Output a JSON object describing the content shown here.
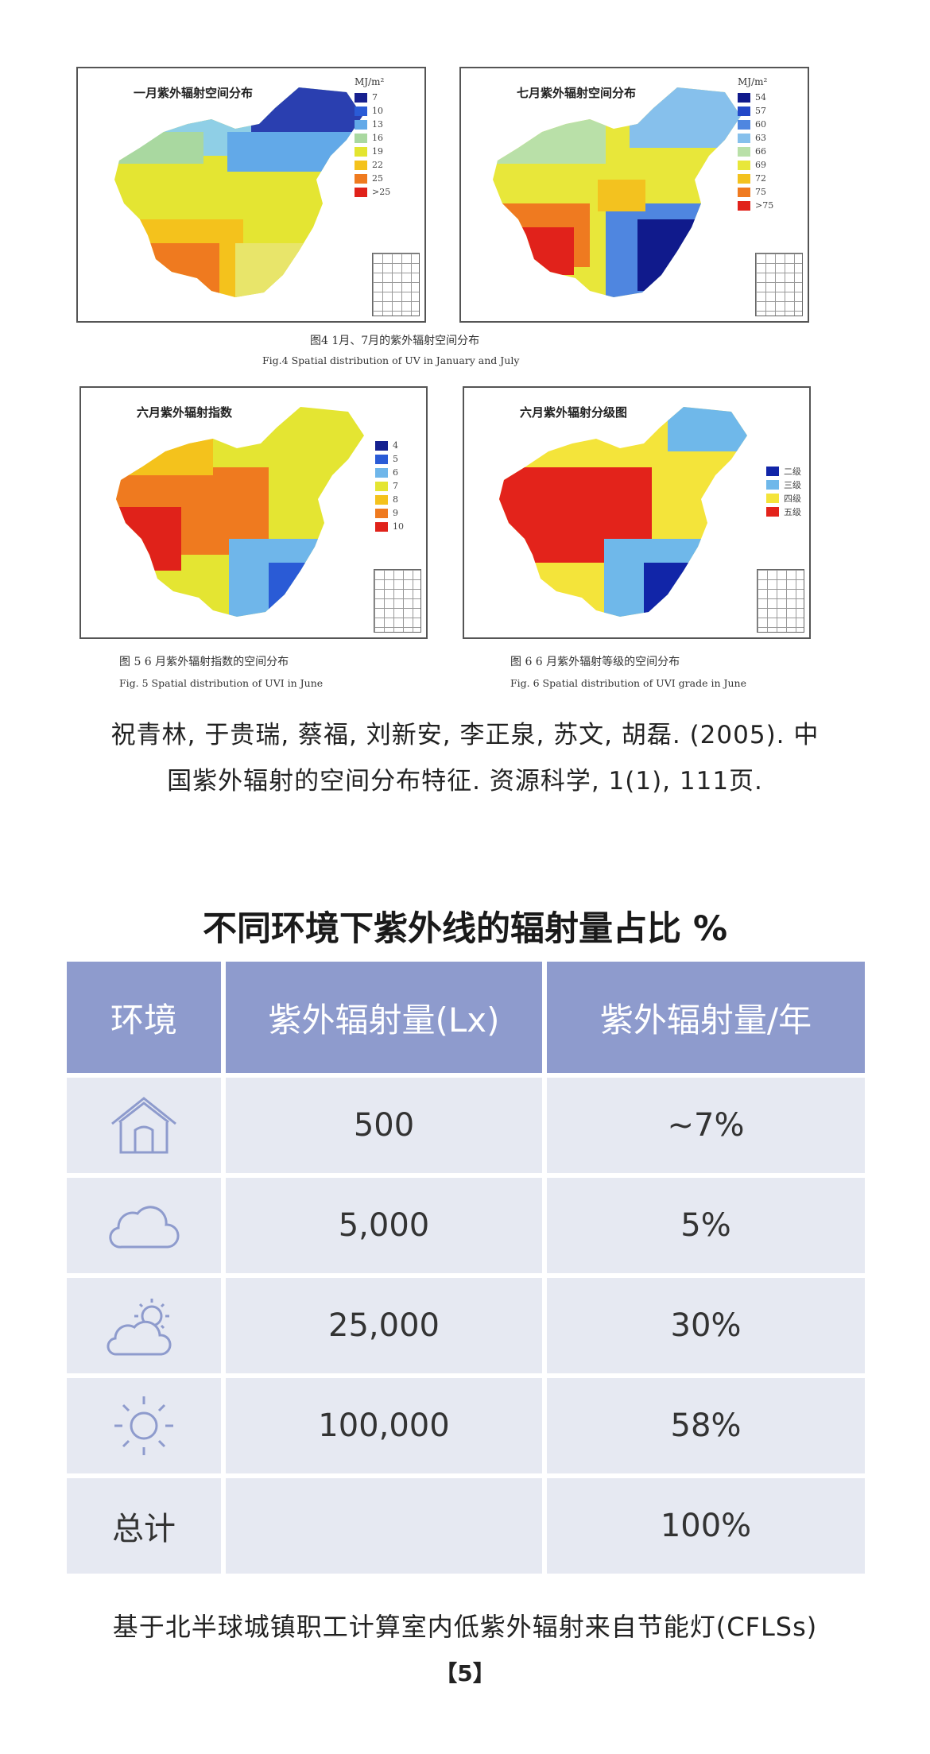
{
  "figures": {
    "jan": {
      "title": "一月紫外辐射空间分布",
      "unit": "MJ/m²",
      "legend": [
        "7",
        "10",
        "13",
        "16",
        "19",
        "22",
        "25",
        ">25"
      ],
      "colors": [
        "#17208f",
        "#2a5bd6",
        "#62a9e8",
        "#a9d8a0",
        "#e3e530",
        "#f4c21c",
        "#ef7a1f",
        "#e0221a"
      ]
    },
    "jul": {
      "title": "七月紫外辐射空间分布",
      "unit": "MJ/m²",
      "legend": [
        "54",
        "57",
        "60",
        "63",
        "66",
        "69",
        "72",
        "75",
        ">75"
      ],
      "colors": [
        "#101a8c",
        "#2348c8",
        "#4f86e0",
        "#86c0ec",
        "#b9e0a8",
        "#e8e73a",
        "#f3c21f",
        "#ef7a20",
        "#e1221b"
      ]
    },
    "caption_top": {
      "cn": "图4 1月、7月的紫外辐射空间分布",
      "en": "Fig.4   Spatial distribution of UV in January and July"
    },
    "uvi": {
      "title": "六月紫外辐射指数",
      "legend": [
        "4",
        "5",
        "6",
        "7",
        "8",
        "9",
        "10"
      ],
      "colors": [
        "#14208f",
        "#2a5bd6",
        "#6fb6ea",
        "#e4e532",
        "#f4c21c",
        "#ef7a1f",
        "#e0221a"
      ],
      "caption_cn": "图 5   6 月紫外辐射指数的空间分布",
      "caption_en": "Fig. 5   Spatial distribution of UVI in June"
    },
    "grade": {
      "title": "六月紫外辐射分级图",
      "legend": [
        "二级",
        "三级",
        "四级",
        "五级"
      ],
      "colors": [
        "#1125a8",
        "#6fb8ea",
        "#f4e43a",
        "#e3231b"
      ],
      "caption_cn": "图 6   6 月紫外辐射等级的空间分布",
      "caption_en": "Fig. 6   Spatial distribution of UVI grade in June"
    }
  },
  "citation": {
    "line1": "祝青林, 于贵瑞, 蔡福, 刘新安, 李正泉, 苏文, 胡磊. (2005). 中",
    "line2": "国紫外辐射的空间分布特征. 资源科学, 1(1), 111页."
  },
  "table": {
    "title": "不同环境下紫外线的辐射量占比 %",
    "headers": [
      "环境",
      "紫外辐射量(Lx)",
      "紫外辐射量/年"
    ],
    "rows": [
      {
        "icon": "house-icon",
        "lux": "500",
        "pct": "~7%"
      },
      {
        "icon": "cloud-icon",
        "lux": "5,000",
        "pct": "5%"
      },
      {
        "icon": "sun-cloud-icon",
        "lux": "25,000",
        "pct": "30%"
      },
      {
        "icon": "sun-icon",
        "lux": "100,000",
        "pct": "58%"
      }
    ],
    "total": {
      "label": "总计",
      "lux": "",
      "pct": "100%"
    },
    "icon_color": "#8e9bcd"
  },
  "footer": {
    "text": "基于北半球城镇职工计算室内低紫外辐射来自节能灯(CFLSs)",
    "ref": "【5】"
  }
}
